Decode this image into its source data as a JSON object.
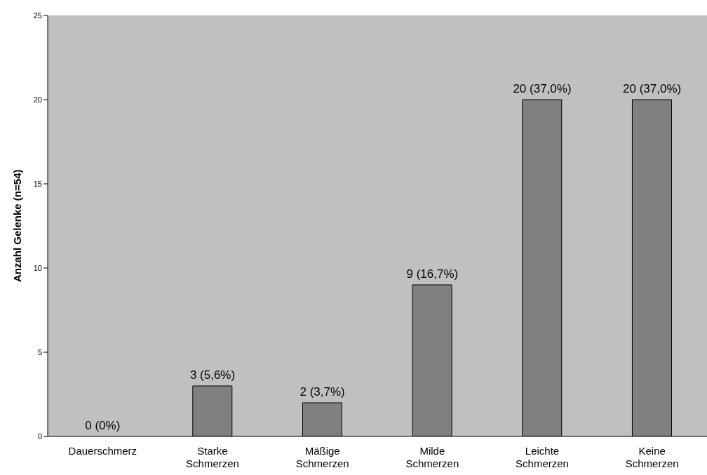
{
  "chart_data": {
    "type": "bar",
    "ylabel": "Anzahl Gelenke (n=54)",
    "categories": [
      "Dauerschmerz",
      "Starke Schmerzen",
      "Mäßige Schmerzen",
      "Milde Schmerzen",
      "Leichte Schmerzen",
      "Keine Schmerzen"
    ],
    "values": [
      0,
      3,
      2,
      9,
      20,
      20
    ],
    "value_labels": [
      "0 (0%)",
      "3 (5,6%)",
      "2 (3,7%)",
      "9 (16,7%)",
      "20 (37,0%)",
      "20 (37,0%)"
    ],
    "color": "#808080",
    "ylim": [
      0,
      25
    ],
    "yticks": [
      0,
      5,
      10,
      15,
      20,
      25
    ],
    "grid": false
  }
}
